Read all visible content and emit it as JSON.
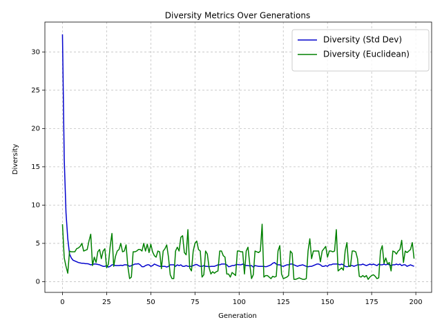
{
  "chart_data": {
    "type": "line",
    "title": "Diversity Metrics Over Generations",
    "x_label": "Generation",
    "y_label": "Diversity",
    "xlim": [
      -9.95,
      208.95
    ],
    "ylim": [
      -1.4,
      33.9
    ],
    "xticks": [
      0,
      25,
      50,
      75,
      100,
      125,
      150,
      175,
      200
    ],
    "yticks": [
      0,
      5,
      10,
      15,
      20,
      25,
      30
    ],
    "grid": true,
    "legend": "upper right",
    "x": [
      0,
      1,
      2,
      3,
      4,
      5,
      6,
      7,
      8,
      9,
      10,
      11,
      12,
      13,
      14,
      15,
      16,
      17,
      18,
      19,
      20,
      21,
      22,
      23,
      24,
      25,
      26,
      27,
      28,
      29,
      30,
      31,
      32,
      33,
      34,
      35,
      36,
      37,
      38,
      39,
      40,
      41,
      42,
      43,
      44,
      45,
      46,
      47,
      48,
      49,
      50,
      51,
      52,
      53,
      54,
      55,
      56,
      57,
      58,
      59,
      60,
      61,
      62,
      63,
      64,
      65,
      66,
      67,
      68,
      69,
      70,
      71,
      72,
      73,
      74,
      75,
      76,
      77,
      78,
      79,
      80,
      81,
      82,
      83,
      84,
      85,
      86,
      87,
      88,
      89,
      90,
      91,
      92,
      93,
      94,
      95,
      96,
      97,
      98,
      99,
      100,
      101,
      102,
      103,
      104,
      105,
      106,
      107,
      108,
      109,
      110,
      111,
      112,
      113,
      114,
      115,
      116,
      117,
      118,
      119,
      120,
      121,
      122,
      123,
      124,
      125,
      126,
      127,
      128,
      129,
      130,
      131,
      132,
      133,
      134,
      135,
      136,
      137,
      138,
      139,
      140,
      141,
      142,
      143,
      144,
      145,
      146,
      147,
      148,
      149,
      150,
      151,
      152,
      153,
      154,
      155,
      156,
      157,
      158,
      159,
      160,
      161,
      162,
      163,
      164,
      165,
      166,
      167,
      168,
      169,
      170,
      171,
      172,
      173,
      174,
      175,
      176,
      177,
      178,
      179,
      180,
      181,
      182,
      183,
      184,
      185,
      186,
      187,
      188,
      189,
      190,
      191,
      192,
      193,
      194,
      195,
      196,
      197,
      198,
      199
    ],
    "series": [
      {
        "name": "Diversity (Std Dev)",
        "color": "#0000cc",
        "values": [
          32.3,
          16.0,
          9.0,
          5.6,
          3.6,
          3.1,
          2.8,
          2.7,
          2.6,
          2.5,
          2.45,
          2.4,
          2.4,
          2.35,
          2.35,
          2.3,
          2.2,
          2.25,
          2.3,
          2.3,
          2.25,
          2.2,
          2.1,
          2.0,
          2.0,
          2.1,
          1.9,
          2.0,
          2.2,
          2.2,
          2.1,
          2.1,
          2.1,
          2.15,
          2.1,
          2.2,
          2.2,
          2.15,
          2.0,
          2.1,
          2.2,
          2.3,
          2.3,
          2.35,
          2.2,
          1.95,
          1.95,
          2.1,
          2.2,
          2.2,
          2.0,
          2.1,
          2.3,
          2.2,
          2.1,
          2.0,
          2.0,
          2.0,
          2.0,
          1.9,
          2.0,
          2.2,
          2.2,
          2.2,
          2.0,
          2.2,
          2.1,
          2.2,
          2.0,
          2.0,
          2.1,
          2.0,
          2.0,
          2.0,
          2.1,
          2.2,
          2.25,
          2.1,
          2.0,
          2.0,
          2.1,
          2.0,
          2.0,
          1.95,
          2.0,
          2.0,
          2.0,
          2.1,
          2.2,
          2.2,
          2.3,
          2.3,
          2.3,
          2.2,
          1.95,
          2.0,
          2.1,
          2.1,
          2.2,
          2.25,
          2.2,
          2.2,
          2.3,
          2.2,
          2.1,
          2.1,
          2.05,
          2.1,
          1.9,
          2.1,
          2.05,
          2.0,
          2.0,
          2.0,
          2.0,
          1.95,
          2.0,
          2.1,
          2.2,
          2.4,
          2.5,
          2.3,
          2.2,
          2.2,
          2.05,
          2.0,
          2.1,
          2.2,
          2.2,
          2.3,
          2.3,
          2.2,
          2.1,
          2.0,
          2.1,
          2.15,
          2.2,
          2.1,
          2.0,
          1.95,
          2.0,
          2.0,
          2.1,
          2.2,
          2.3,
          2.3,
          2.2,
          2.0,
          2.0,
          2.1,
          2.0,
          2.2,
          2.2,
          2.3,
          2.3,
          2.3,
          2.3,
          2.2,
          2.3,
          2.2,
          2.0,
          1.95,
          2.0,
          2.1,
          2.1,
          2.0,
          2.1,
          2.2,
          2.2,
          2.2,
          2.3,
          2.2,
          2.1,
          2.2,
          2.3,
          2.2,
          2.3,
          2.2,
          2.1,
          2.3,
          2.2,
          2.2,
          2.3,
          2.2,
          2.3,
          2.2,
          2.1,
          2.2,
          2.2,
          2.3,
          2.2,
          2.3,
          2.1,
          2.2,
          2.2,
          2.0,
          2.1,
          2.2,
          2.1,
          2.0
        ]
      },
      {
        "name": "Diversity (Euclidean)",
        "color": "#008000",
        "values": [
          7.5,
          3.1,
          2.0,
          1.1,
          4.0,
          3.9,
          3.9,
          3.9,
          4.3,
          4.4,
          4.6,
          5.0,
          4.0,
          4.1,
          4.2,
          5.3,
          6.2,
          2.1,
          3.2,
          2.5,
          3.9,
          4.2,
          3.0,
          4.0,
          4.3,
          1.8,
          2.3,
          4.6,
          6.3,
          2.0,
          3.3,
          4.0,
          4.2,
          5.0,
          3.9,
          4.0,
          4.8,
          2.0,
          0.4,
          0.6,
          3.9,
          3.9,
          4.0,
          4.2,
          4.2,
          4.0,
          5.0,
          4.0,
          4.9,
          3.8,
          4.9,
          3.9,
          3.4,
          3.2,
          4.0,
          3.9,
          1.7,
          4.0,
          4.3,
          4.8,
          3.2,
          0.9,
          0.4,
          0.4,
          4.0,
          4.5,
          4.0,
          5.8,
          6.0,
          3.8,
          3.5,
          6.8,
          1.8,
          1.4,
          4.0,
          5.0,
          5.3,
          4.2,
          4.0,
          0.6,
          0.9,
          4.0,
          3.6,
          1.8,
          1.0,
          1.3,
          1.1,
          1.3,
          1.4,
          4.0,
          4.0,
          3.4,
          3.2,
          1.0,
          1.0,
          0.6,
          1.2,
          1.0,
          0.8,
          4.0,
          4.0,
          3.9,
          3.9,
          1.0,
          4.0,
          4.5,
          2.3,
          0.4,
          0.9,
          4.0,
          3.9,
          3.8,
          4.0,
          7.5,
          0.6,
          0.8,
          0.8,
          0.6,
          0.4,
          0.7,
          0.6,
          0.7,
          4.0,
          4.7,
          1.0,
          0.4,
          0.5,
          0.6,
          0.8,
          4.0,
          3.7,
          0.3,
          0.3,
          0.4,
          0.5,
          0.4,
          0.3,
          0.3,
          0.4,
          4.0,
          5.6,
          3.0,
          4.0,
          4.0,
          4.0,
          4.0,
          2.6,
          4.0,
          4.3,
          4.6,
          3.2,
          4.0,
          4.0,
          3.9,
          4.0,
          6.8,
          1.4,
          1.6,
          1.8,
          1.5,
          4.0,
          5.1,
          2.0,
          2.0,
          4.0,
          4.0,
          3.9,
          3.0,
          0.7,
          0.6,
          0.8,
          0.6,
          0.8,
          0.3,
          0.6,
          0.8,
          0.9,
          0.7,
          0.4,
          0.5,
          4.0,
          4.7,
          2.4,
          3.1,
          2.3,
          2.5,
          1.4,
          4.0,
          3.9,
          3.6,
          4.0,
          4.2,
          5.4,
          2.5,
          4.0,
          3.8,
          4.0,
          4.2,
          5.1,
          3.0
        ]
      }
    ]
  }
}
